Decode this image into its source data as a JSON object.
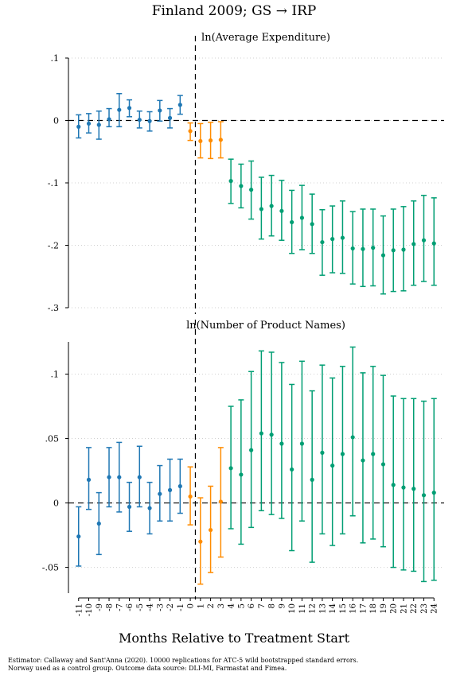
{
  "title": "Finland 2009; GS → IRP",
  "xlabel": "Months Relative to Treatment Start",
  "notes": [
    "Estimator: Callaway and Sant'Anna (2020). 10000 replications for ATC-5 wild bootstrapped standard errors.",
    "Norway used as a control group. Outcome data source: DLI-MI, Farmastat and Fimea."
  ],
  "colors": {
    "pre": "#1f77b4",
    "short_run": "#ff8c00",
    "post": "#009e73"
  },
  "chart_data": [
    {
      "type": "scatter",
      "subtitle": "ln(Average Expenditure)",
      "x": [
        -11,
        -10,
        -9,
        -8,
        -7,
        -6,
        -5,
        -4,
        -3,
        -2,
        -1,
        0,
        1,
        2,
        3,
        4,
        5,
        6,
        7,
        8,
        9,
        10,
        11,
        12,
        13,
        14,
        15,
        16,
        17,
        18,
        19,
        20,
        21,
        22,
        23,
        24
      ],
      "y": [
        -0.01,
        -0.005,
        -0.007,
        0.002,
        0.017,
        0.02,
        0.001,
        -0.001,
        0.016,
        0.004,
        0.025,
        -0.017,
        -0.033,
        -0.032,
        -0.031,
        -0.097,
        -0.105,
        -0.111,
        -0.142,
        -0.137,
        -0.145,
        -0.163,
        -0.156,
        -0.166,
        -0.195,
        -0.19,
        -0.188,
        -0.205,
        -0.206,
        -0.204,
        -0.216,
        -0.208,
        -0.207,
        -0.198,
        -0.192,
        -0.197
      ],
      "ci_low": [
        -0.028,
        -0.02,
        -0.03,
        -0.01,
        -0.01,
        0.006,
        -0.012,
        -0.017,
        -0.001,
        -0.012,
        0.01,
        -0.032,
        -0.06,
        -0.061,
        -0.06,
        -0.133,
        -0.14,
        -0.158,
        -0.19,
        -0.185,
        -0.192,
        -0.213,
        -0.207,
        -0.213,
        -0.248,
        -0.244,
        -0.245,
        -0.262,
        -0.266,
        -0.265,
        -0.278,
        -0.274,
        -0.273,
        -0.264,
        -0.258,
        -0.264
      ],
      "ci_high": [
        0.009,
        0.011,
        0.015,
        0.019,
        0.043,
        0.033,
        0.015,
        0.014,
        0.032,
        0.019,
        0.04,
        -0.004,
        -0.005,
        -0.003,
        -0.002,
        -0.062,
        -0.07,
        -0.065,
        -0.091,
        -0.088,
        -0.096,
        -0.112,
        -0.104,
        -0.118,
        -0.143,
        -0.137,
        -0.129,
        -0.146,
        -0.142,
        -0.142,
        -0.153,
        -0.142,
        -0.138,
        -0.129,
        -0.12,
        -0.124
      ],
      "ylim": [
        -0.3,
        0.1
      ],
      "yticks": [
        -0.3,
        -0.2,
        -0.1,
        0,
        0.1
      ],
      "ytick_labels": [
        "-.3",
        "-.2",
        "-.1",
        "0",
        ".1"
      ]
    },
    {
      "type": "scatter",
      "subtitle": "ln(Number of Product Names)",
      "x": [
        -11,
        -10,
        -9,
        -8,
        -7,
        -6,
        -5,
        -4,
        -3,
        -2,
        -1,
        0,
        1,
        2,
        3,
        4,
        5,
        6,
        7,
        8,
        9,
        10,
        11,
        12,
        13,
        14,
        15,
        16,
        17,
        18,
        19,
        20,
        21,
        22,
        23,
        24
      ],
      "y": [
        -0.026,
        0.018,
        -0.016,
        0.02,
        0.02,
        -0.003,
        0.02,
        -0.004,
        0.007,
        0.01,
        0.013,
        0.005,
        -0.03,
        -0.021,
        0.001,
        0.027,
        0.022,
        0.041,
        0.054,
        0.053,
        0.046,
        0.026,
        0.046,
        0.018,
        0.039,
        0.029,
        0.038,
        0.051,
        0.033,
        0.038,
        0.03,
        0.014,
        0.012,
        0.011,
        0.006,
        0.008
      ],
      "ci_low": [
        -0.049,
        -0.005,
        -0.04,
        -0.003,
        -0.007,
        -0.022,
        -0.003,
        -0.024,
        -0.014,
        -0.014,
        -0.008,
        -0.017,
        -0.063,
        -0.054,
        -0.042,
        -0.02,
        -0.032,
        -0.019,
        -0.006,
        -0.009,
        -0.012,
        -0.037,
        -0.014,
        -0.046,
        -0.024,
        -0.033,
        -0.024,
        -0.01,
        -0.031,
        -0.028,
        -0.034,
        -0.05,
        -0.052,
        -0.053,
        -0.061,
        -0.06
      ],
      "ci_high": [
        -0.003,
        0.043,
        0.008,
        0.043,
        0.047,
        0.016,
        0.044,
        0.016,
        0.029,
        0.034,
        0.034,
        0.028,
        0.004,
        0.013,
        0.043,
        0.075,
        0.08,
        0.102,
        0.118,
        0.117,
        0.109,
        0.092,
        0.11,
        0.087,
        0.107,
        0.097,
        0.106,
        0.121,
        0.101,
        0.106,
        0.099,
        0.083,
        0.081,
        0.081,
        0.079,
        0.081
      ],
      "ylim": [
        -0.07,
        0.125
      ],
      "yticks": [
        -0.05,
        0,
        0.05,
        0.1
      ],
      "ytick_labels": [
        "-.05",
        "0",
        ".05",
        ".1"
      ]
    }
  ],
  "x_tick_labels": [
    "-11",
    "-10",
    "-9",
    "-8",
    "-7",
    "-6",
    "-5",
    "-4",
    "-3",
    "-2",
    "-1",
    "0",
    "1",
    "2",
    "3",
    "4",
    "5",
    "6",
    "7",
    "8",
    "9",
    "10",
    "11",
    "12",
    "13",
    "14",
    "15",
    "16",
    "17",
    "18",
    "19",
    "20",
    "21",
    "22",
    "23",
    "24"
  ]
}
